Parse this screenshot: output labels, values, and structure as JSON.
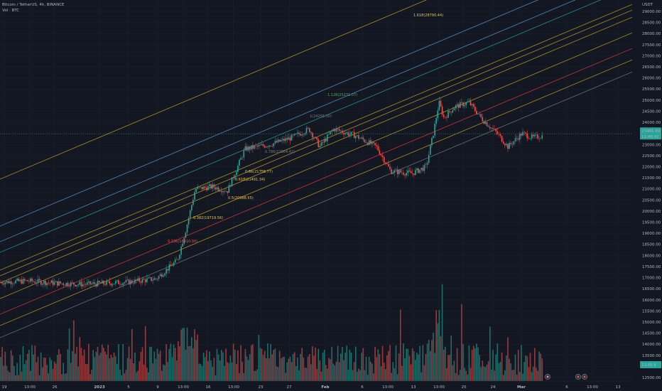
{
  "legend": {
    "symbol_line": "Bitcoin / TetherUS, 4h, BINANCE",
    "volume_line": "Vol · BTC"
  },
  "price_axis": {
    "currency": "USDT",
    "ticks": [
      "29000.00",
      "28500.00",
      "28000.00",
      "27500.00",
      "27000.00",
      "26500.00",
      "26000.00",
      "25500.00",
      "25000.00",
      "24500.00",
      "24000.00",
      "23500.00",
      "23000.00",
      "22500.00",
      "22000.00",
      "21500.00",
      "21000.00",
      "20500.00",
      "20000.00",
      "19500.00",
      "19000.00",
      "18500.00",
      "18000.00",
      "17500.00",
      "17000.00",
      "16500.00",
      "16000.00",
      "15500.00",
      "15000.00",
      "14500.00",
      "14000.00",
      "13500.00",
      "13000.00",
      "12500.00"
    ],
    "current_price_label": "23481.89",
    "current_sub_label": "11:49:42",
    "volume_label": "13.05 K",
    "colors": {
      "price_badge": "#26a69a",
      "volume_badge": "#26a69a"
    }
  },
  "time_axis": {
    "ticks": [
      "19",
      "13:00",
      "26",
      "2023",
      "5",
      "9",
      "13:00",
      "16",
      "13:00",
      "23",
      "27",
      "Feb",
      "6",
      "13:00",
      "13",
      "13:00",
      "20",
      "24",
      "Mar",
      "6",
      "13:00",
      "13"
    ]
  },
  "fib_labels": [
    {
      "text": "1.618(28790.44)",
      "color": "#e8c547"
    },
    {
      "text": "1.128(25231.07)",
      "color": "#4caf50"
    },
    {
      "text": "1(24255.00)",
      "color": "#787b86"
    },
    {
      "text": "0.786(22864.42)",
      "color": "#787b86"
    },
    {
      "text": "0.66(21758.77)",
      "color": "#e8c547"
    },
    {
      "text": "0.618(21491.34)",
      "color": "#e8c547"
    },
    {
      "text": "0.5(20988.55)",
      "color": "#e8c547"
    },
    {
      "text": "0.382(19719.56)",
      "color": "#e8c547"
    },
    {
      "text": "0.236(18910.00)",
      "color": "#ef5350"
    }
  ],
  "fib_channel_colors": {
    "gold": "#c9a227",
    "teal": "#26a69a",
    "blue": "#2962ff",
    "cyan": "#5b9bd5",
    "red": "#e53935",
    "gray": "#787b86",
    "green": "#4caf50"
  },
  "candle_colors": {
    "up": "#26a69a",
    "down": "#ef5350"
  },
  "event_markers": [
    "event-icon",
    "event-icon",
    "event-icon"
  ]
}
